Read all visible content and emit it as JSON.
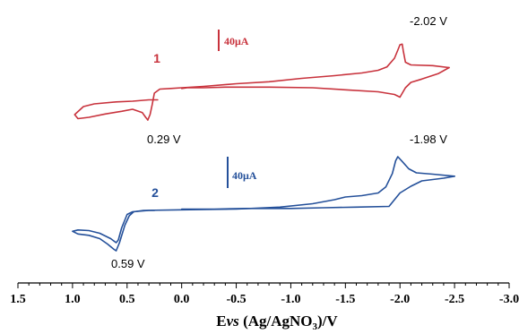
{
  "chart_data": {
    "type": "line",
    "xlim": [
      1.5,
      -3.0
    ],
    "x_ticks": [
      "1.5",
      "1.0",
      "0.5",
      "0.0",
      "-0.5",
      "-1.0",
      "-1.5",
      "-2.0",
      "-2.5",
      "-3.0"
    ],
    "x_tick_values": [
      1.5,
      1.0,
      0.5,
      0.0,
      -0.5,
      -1.0,
      -1.5,
      -2.0,
      -2.5,
      -3.0
    ],
    "xlabel": {
      "prefix": "E",
      "italic": "vs",
      "main": " (Ag/AgNO",
      "sub": "3",
      "suffix": ")/V"
    },
    "grid": false,
    "series": [
      {
        "name": "1",
        "color": "#c8323c",
        "scale_bar": {
          "label": "40μA",
          "microamps": 40
        },
        "peaks": [
          {
            "x": -2.02,
            "label": "-2.02 V"
          },
          {
            "x": 0.29,
            "label": "0.29 V"
          }
        ],
        "forward": [
          [
            0.22,
            30
          ],
          [
            0.3,
            30
          ],
          [
            0.45,
            28
          ],
          [
            0.6,
            27
          ],
          [
            0.8,
            24
          ],
          [
            0.9,
            20
          ],
          [
            0.98,
            8
          ],
          [
            0.95,
            2
          ],
          [
            0.85,
            4
          ],
          [
            0.7,
            9
          ],
          [
            0.55,
            13
          ],
          [
            0.45,
            16
          ],
          [
            0.36,
            11
          ],
          [
            0.33,
            4
          ],
          [
            0.31,
            0
          ]
        ],
        "reverse": [
          [
            0.31,
            0
          ],
          [
            0.29,
            8
          ],
          [
            0.27,
            23
          ],
          [
            0.25,
            40
          ],
          [
            0.2,
            46
          ],
          [
            0.1,
            47
          ],
          [
            0.0,
            48
          ],
          [
            -0.2,
            50
          ],
          [
            -0.5,
            54
          ],
          [
            -0.8,
            57
          ],
          [
            -1.1,
            62
          ],
          [
            -1.4,
            66
          ],
          [
            -1.65,
            70
          ],
          [
            -1.8,
            74
          ],
          [
            -1.88,
            79
          ],
          [
            -1.95,
            92
          ],
          [
            -1.98,
            104
          ],
          [
            -2.0,
            112
          ],
          [
            -2.02,
            113
          ],
          [
            -2.03,
            103
          ],
          [
            -2.05,
            86
          ],
          [
            -2.1,
            82
          ],
          [
            -2.3,
            81
          ],
          [
            -2.45,
            78
          ]
        ],
        "return": [
          [
            -2.45,
            78
          ],
          [
            -2.35,
            69
          ],
          [
            -2.2,
            61
          ],
          [
            -2.1,
            56
          ],
          [
            -2.05,
            48
          ],
          [
            -2.0,
            34
          ],
          [
            -1.95,
            38
          ],
          [
            -1.8,
            42
          ],
          [
            -1.5,
            45
          ],
          [
            -1.2,
            48
          ],
          [
            -0.8,
            49
          ],
          [
            -0.4,
            49
          ],
          [
            -0.2,
            48
          ],
          [
            -0.05,
            48
          ],
          [
            0.0,
            47
          ]
        ]
      },
      {
        "name": "2",
        "color": "#24509a",
        "scale_bar": {
          "label": "40μA",
          "microamps": 40
        },
        "peaks": [
          {
            "x": -1.98,
            "label": "-1.98 V"
          },
          {
            "x": 0.59,
            "label": "0.59 V"
          }
        ],
        "forward": [
          [
            0.25,
            0
          ],
          [
            0.3,
            0
          ],
          [
            0.45,
            -2
          ],
          [
            0.5,
            -6
          ],
          [
            0.55,
            -26
          ],
          [
            0.58,
            -44
          ],
          [
            0.6,
            -48
          ],
          [
            0.65,
            -42
          ],
          [
            0.75,
            -34
          ],
          [
            0.85,
            -30
          ],
          [
            0.95,
            -29
          ],
          [
            1.0,
            -31
          ],
          [
            0.95,
            -35
          ],
          [
            0.85,
            -37
          ],
          [
            0.75,
            -42
          ],
          [
            0.68,
            -50
          ],
          [
            0.62,
            -58
          ],
          [
            0.6,
            -60
          ]
        ],
        "reverse": [
          [
            0.6,
            -60
          ],
          [
            0.57,
            -48
          ],
          [
            0.52,
            -22
          ],
          [
            0.48,
            -8
          ],
          [
            0.44,
            -2
          ],
          [
            0.35,
            0
          ],
          [
            0.0,
            1
          ],
          [
            -0.5,
            2
          ],
          [
            -0.9,
            5
          ],
          [
            -1.2,
            10
          ],
          [
            -1.4,
            16
          ],
          [
            -1.5,
            20
          ],
          [
            -1.65,
            22
          ],
          [
            -1.8,
            26
          ],
          [
            -1.87,
            35
          ],
          [
            -1.93,
            55
          ],
          [
            -1.96,
            74
          ],
          [
            -1.98,
            80
          ],
          [
            -2.02,
            73
          ],
          [
            -2.08,
            62
          ],
          [
            -2.15,
            56
          ],
          [
            -2.3,
            54
          ],
          [
            -2.5,
            51
          ]
        ],
        "return": [
          [
            -2.5,
            51
          ],
          [
            -2.4,
            48
          ],
          [
            -2.3,
            46
          ],
          [
            -2.2,
            44
          ],
          [
            -2.1,
            36
          ],
          [
            -2.0,
            26
          ],
          [
            -1.95,
            16
          ],
          [
            -1.9,
            6
          ],
          [
            -1.6,
            5
          ],
          [
            -1.3,
            4
          ],
          [
            -1.0,
            3
          ],
          [
            -0.6,
            3
          ],
          [
            -0.3,
            2
          ],
          [
            0.0,
            2
          ]
        ]
      }
    ]
  }
}
